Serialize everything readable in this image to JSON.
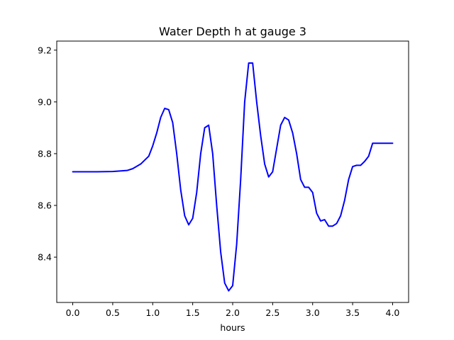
{
  "chart_data": {
    "type": "line",
    "title": "Water Depth h at gauge 3",
    "xlabel": "hours",
    "ylabel": "",
    "xlim": [
      -0.2,
      4.2
    ],
    "ylim": [
      8.225,
      9.235
    ],
    "x_ticks": [
      0.0,
      0.5,
      1.0,
      1.5,
      2.0,
      2.5,
      3.0,
      3.5,
      4.0
    ],
    "x_tick_labels": [
      "0.0",
      "0.5",
      "1.0",
      "1.5",
      "2.0",
      "2.5",
      "3.0",
      "3.5",
      "4.0"
    ],
    "y_ticks": [
      8.4,
      8.6,
      8.8,
      9.0,
      9.2
    ],
    "y_tick_labels": [
      "8.4",
      "8.6",
      "8.8",
      "9.0",
      "9.2"
    ],
    "grid": false,
    "legend": "none",
    "series": [
      {
        "color": "#0000ff",
        "x": [
          0.0,
          0.3,
          0.5,
          0.68,
          0.75,
          0.85,
          0.95,
          1.0,
          1.05,
          1.1,
          1.15,
          1.2,
          1.25,
          1.3,
          1.35,
          1.4,
          1.45,
          1.5,
          1.55,
          1.6,
          1.65,
          1.7,
          1.75,
          1.8,
          1.85,
          1.9,
          1.95,
          2.0,
          2.05,
          2.1,
          2.15,
          2.2,
          2.25,
          2.3,
          2.35,
          2.4,
          2.45,
          2.5,
          2.55,
          2.6,
          2.65,
          2.7,
          2.75,
          2.8,
          2.85,
          2.9,
          2.95,
          3.0,
          3.05,
          3.1,
          3.15,
          3.2,
          3.25,
          3.3,
          3.35,
          3.4,
          3.45,
          3.5,
          3.55,
          3.6,
          3.65,
          3.7,
          3.75,
          3.8,
          3.85,
          3.9,
          3.95,
          4.0
        ],
        "y": [
          8.73,
          8.73,
          8.731,
          8.735,
          8.742,
          8.76,
          8.79,
          8.83,
          8.88,
          8.94,
          8.975,
          8.97,
          8.92,
          8.8,
          8.66,
          8.56,
          8.525,
          8.55,
          8.65,
          8.8,
          8.9,
          8.91,
          8.8,
          8.6,
          8.42,
          8.3,
          8.27,
          8.29,
          8.45,
          8.7,
          9.0,
          9.15,
          9.15,
          9.0,
          8.87,
          8.76,
          8.71,
          8.73,
          8.82,
          8.91,
          8.94,
          8.93,
          8.88,
          8.8,
          8.7,
          8.67,
          8.67,
          8.65,
          8.57,
          8.54,
          8.545,
          8.52,
          8.52,
          8.53,
          8.56,
          8.62,
          8.7,
          8.75,
          8.755,
          8.755,
          8.77,
          8.79,
          8.84,
          8.84,
          8.84,
          8.84,
          8.84,
          8.84
        ]
      }
    ]
  }
}
